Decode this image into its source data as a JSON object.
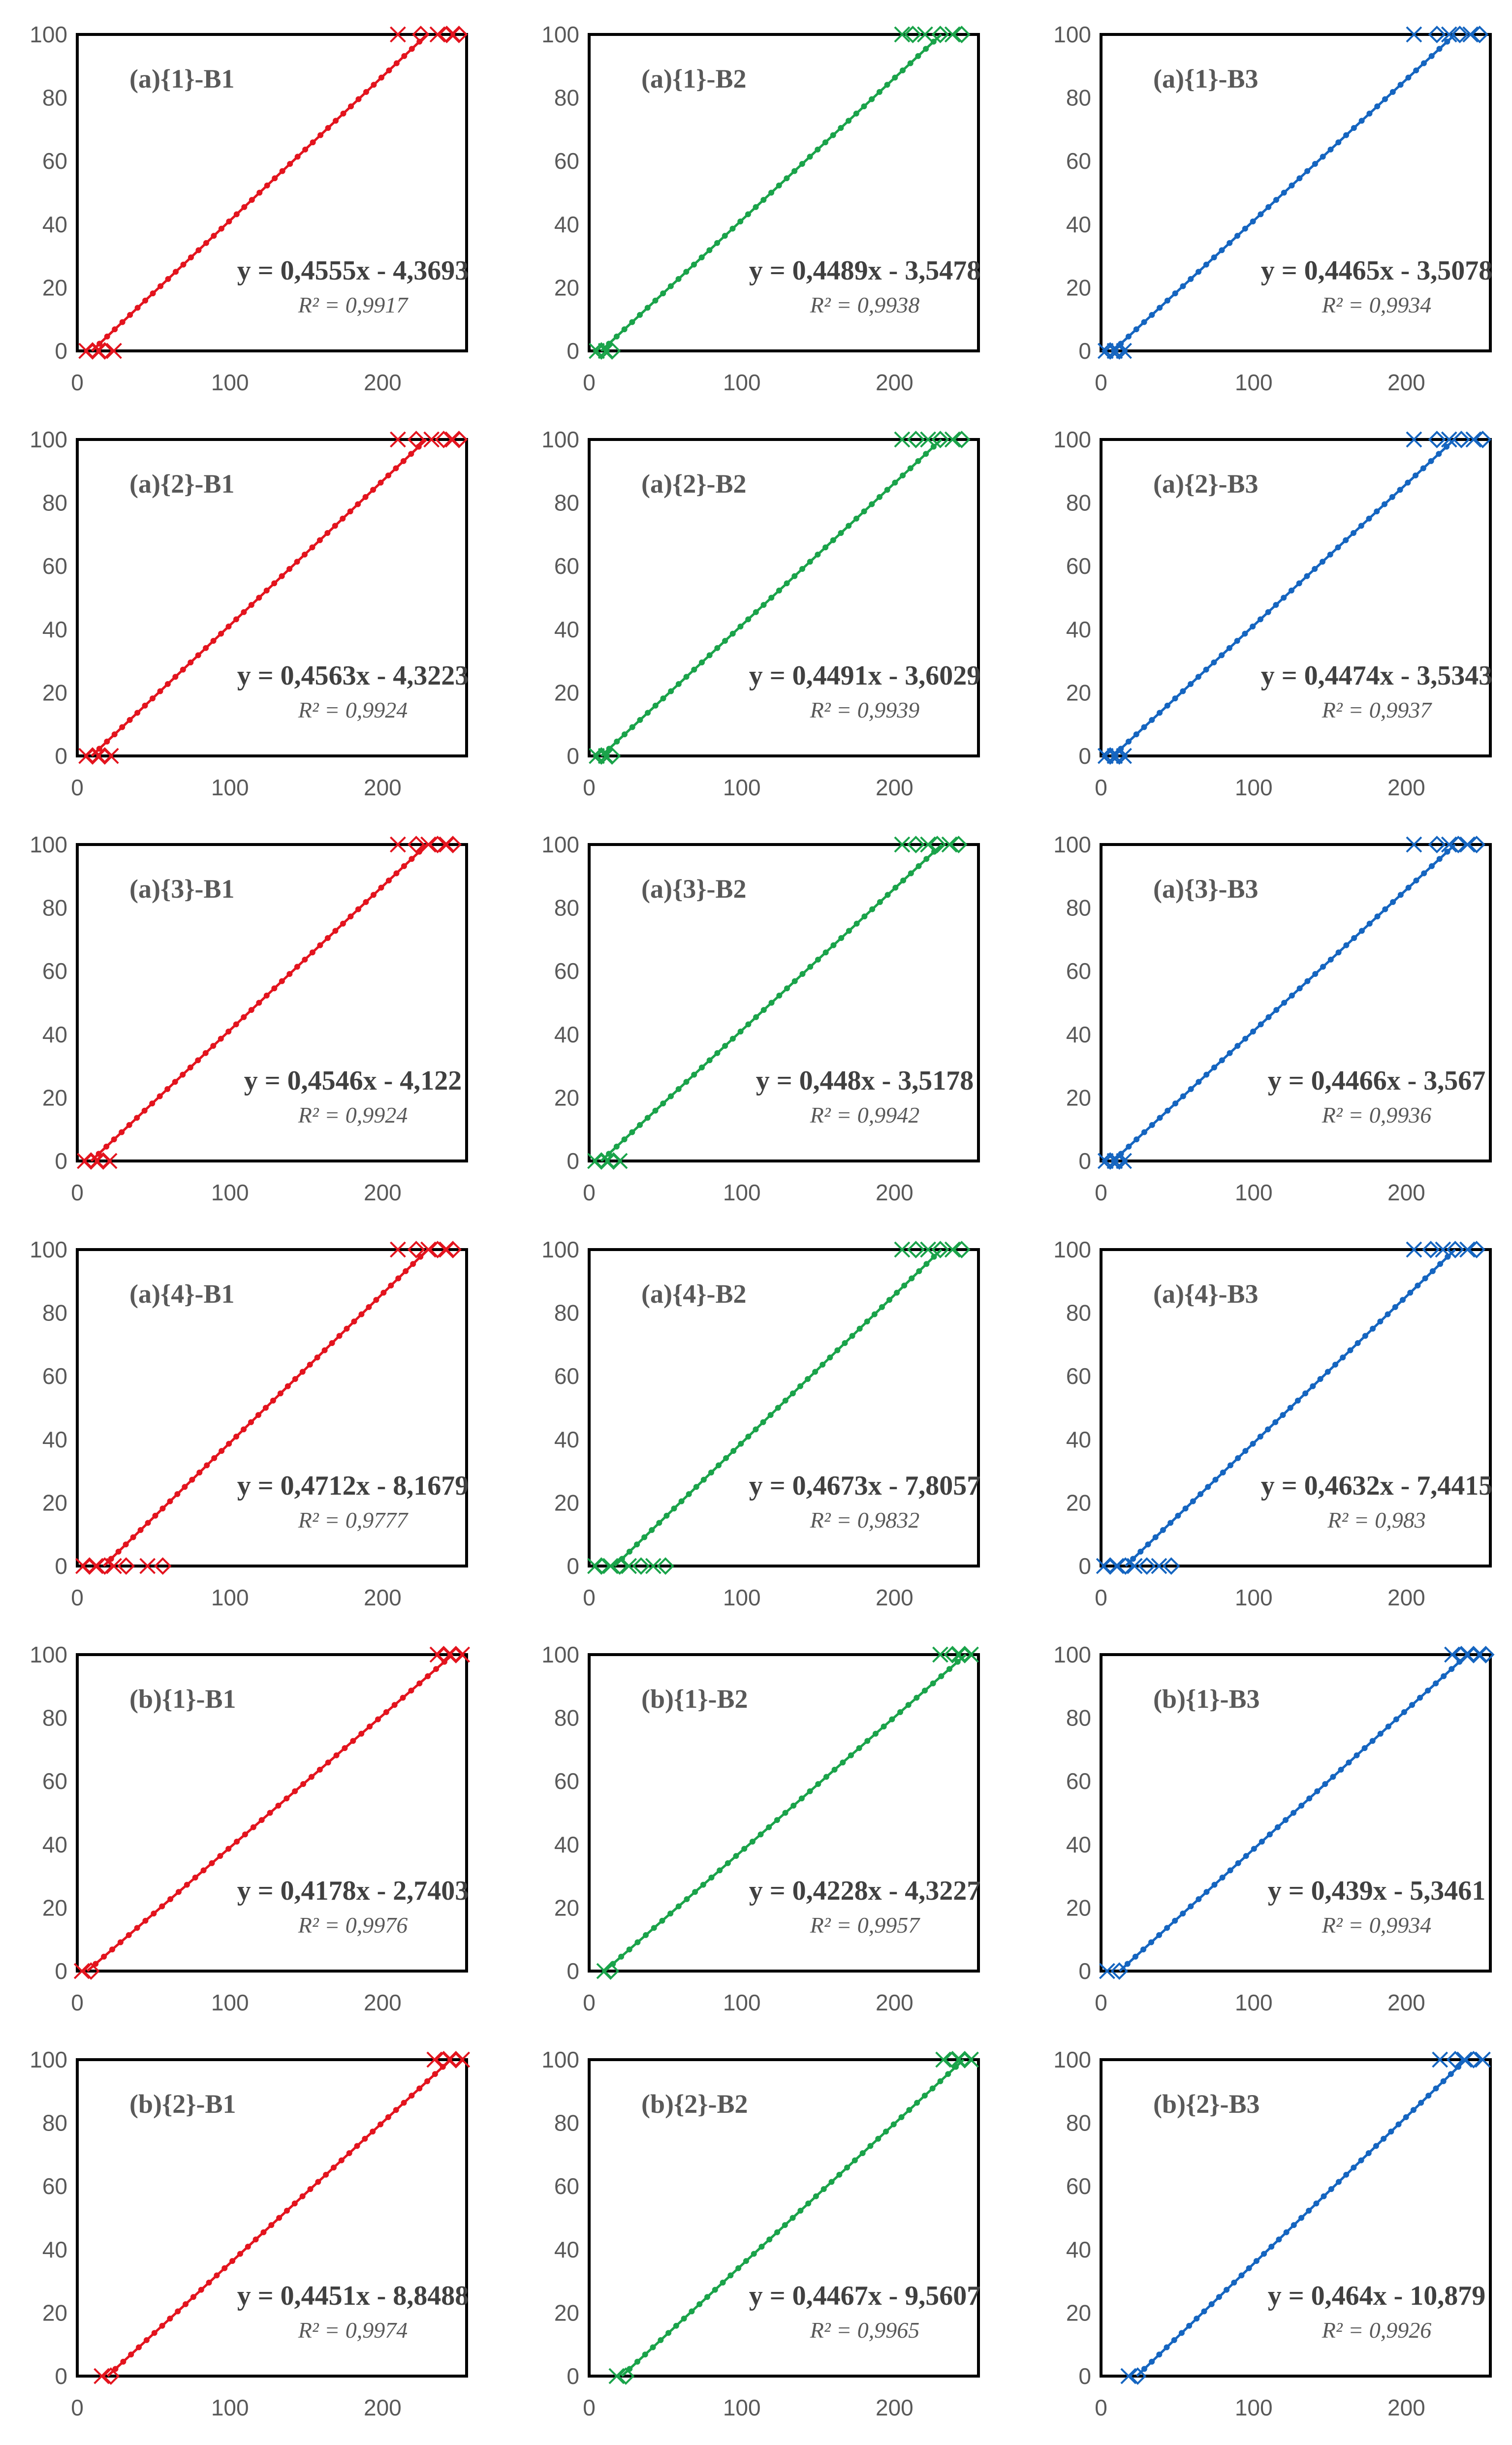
{
  "axes": {
    "x_ticks": [
      "0",
      "100",
      "200"
    ],
    "y_ticks": [
      "0",
      "20",
      "40",
      "60",
      "80",
      "100"
    ],
    "xlim": [
      0,
      255
    ],
    "ylim": [
      0,
      100
    ],
    "grid": false
  },
  "colors": {
    "B1": "#e3141e",
    "B2": "#1aa34a",
    "B3": "#1565c0",
    "frame": "#000000"
  },
  "chart_data": [
    {
      "type": "scatter",
      "title": "(a){1}-B1",
      "equation": "y = 0,4555x - 4,3693",
      "r2": "R² = 0,9917",
      "slope": 0.4555,
      "intercept": -4.3693,
      "color": "#e3141e",
      "low_x": [
        6,
        10,
        14,
        18,
        24
      ],
      "high_x": [
        210,
        225,
        236,
        242,
        246,
        250
      ]
    },
    {
      "type": "scatter",
      "title": "(a){1}-B2",
      "equation": "y = 0,4489x - 3,5478",
      "r2": "R² = 0,9938",
      "slope": 0.4489,
      "intercept": -3.5478,
      "color": "#1aa34a",
      "low_x": [
        5,
        8,
        11,
        15
      ],
      "high_x": [
        205,
        212,
        220,
        230,
        238,
        244
      ],
      "y_offset": 0.1
    },
    {
      "type": "scatter",
      "title": "(a){1}-B3",
      "equation": "y = 0,4465x - 3,5078",
      "r2": "R² = 0,9934",
      "slope": 0.4465,
      "intercept": -3.5078,
      "color": "#1565c0",
      "low_x": [
        3,
        6,
        9,
        12,
        15
      ],
      "high_x": [
        205,
        220,
        228,
        235,
        242,
        248
      ]
    },
    {
      "type": "scatter",
      "title": "(a){2}-B1",
      "equation": "y = 0,4563x - 4,3223",
      "r2": "R² = 0,9924",
      "slope": 0.4563,
      "intercept": -4.3223,
      "color": "#e3141e",
      "low_x": [
        6,
        10,
        14,
        18,
        22
      ],
      "high_x": [
        210,
        222,
        232,
        240,
        246,
        250
      ]
    },
    {
      "type": "scatter",
      "title": "(a){2}-B2",
      "equation": "y = 0,4491x - 3,6029",
      "r2": "R² = 0,9939",
      "slope": 0.4491,
      "intercept": -3.6029,
      "color": "#1aa34a",
      "low_x": [
        5,
        8,
        11,
        15
      ],
      "high_x": [
        205,
        214,
        222,
        230,
        238,
        244
      ]
    },
    {
      "type": "scatter",
      "title": "(a){2}-B3",
      "equation": "y = 0,4474x - 3,5343",
      "r2": "R² = 0,9937",
      "slope": 0.4474,
      "intercept": -3.5343,
      "color": "#1565c0",
      "low_x": [
        3,
        6,
        9,
        12,
        15
      ],
      "high_x": [
        205,
        220,
        228,
        236,
        244,
        250
      ]
    },
    {
      "type": "scatter",
      "title": "(a){3}-B1",
      "equation": "y = 0,4546x - 4,122",
      "r2": "R² = 0,9924",
      "slope": 0.4546,
      "intercept": -4.122,
      "color": "#e3141e",
      "low_x": [
        5,
        9,
        13,
        17,
        21
      ],
      "high_x": [
        210,
        222,
        230,
        236,
        242,
        246
      ]
    },
    {
      "type": "scatter",
      "title": "(a){3}-B2",
      "equation": "y = 0,448x - 3,5178",
      "r2": "R² = 0,9942",
      "slope": 0.448,
      "intercept": -3.5178,
      "color": "#1aa34a",
      "low_x": [
        4,
        8,
        12,
        16,
        20
      ],
      "high_x": [
        205,
        214,
        222,
        228,
        236,
        242
      ]
    },
    {
      "type": "scatter",
      "title": "(a){3}-B3",
      "equation": "y = 0,4466x - 3,567",
      "r2": "R² = 0,9936",
      "slope": 0.4466,
      "intercept": -3.567,
      "color": "#1565c0",
      "low_x": [
        3,
        6,
        9,
        12,
        15
      ],
      "high_x": [
        205,
        220,
        228,
        234,
        240,
        246
      ]
    },
    {
      "type": "scatter",
      "title": "(a){4}-B1",
      "equation": "y = 0,4712x - 8,1679",
      "r2": "R² = 0,9777",
      "slope": 0.4712,
      "intercept": -8.1679,
      "color": "#e3141e",
      "low_x": [
        4,
        8,
        12,
        18,
        24,
        32,
        46,
        56
      ],
      "high_x": [
        210,
        222,
        230,
        236,
        242,
        246
      ]
    },
    {
      "type": "scatter",
      "title": "(a){4}-B2",
      "equation": "y = 0,4673x - 7,8057",
      "r2": "R² = 0,9832",
      "slope": 0.4673,
      "intercept": -7.8057,
      "color": "#1aa34a",
      "low_x": [
        4,
        8,
        14,
        20,
        26,
        34,
        42,
        50
      ],
      "high_x": [
        205,
        214,
        222,
        230,
        238,
        244
      ]
    },
    {
      "type": "scatter",
      "title": "(a){4}-B3",
      "equation": "y = 0,4632x - 7,4415",
      "r2": "R² = 0,983",
      "slope": 0.4632,
      "intercept": -7.4415,
      "color": "#1565c0",
      "low_x": [
        2,
        6,
        10,
        16,
        22,
        30,
        38,
        46
      ],
      "high_x": [
        205,
        216,
        224,
        232,
        240,
        246
      ]
    },
    {
      "type": "scatter",
      "title": "(b){1}-B1",
      "equation": "y = 0,4178x - 2,7403",
      "r2": "R² = 0,9976",
      "slope": 0.4178,
      "intercept": -2.7403,
      "color": "#e3141e",
      "low_x": [
        3,
        9
      ],
      "high_x": [
        236,
        240,
        244,
        248,
        252
      ]
    },
    {
      "type": "scatter",
      "title": "(b){1}-B2",
      "equation": "y = 0,4228x - 4,3227",
      "r2": "R² = 0,9957",
      "slope": 0.4228,
      "intercept": -4.3227,
      "color": "#1aa34a",
      "low_x": [
        10,
        14
      ],
      "high_x": [
        230,
        238,
        242,
        246,
        250
      ]
    },
    {
      "type": "scatter",
      "title": "(b){1}-B3",
      "equation": "y = 0,439x - 5,3461",
      "r2": "R² = 0,9934",
      "slope": 0.439,
      "intercept": -5.3461,
      "color": "#1565c0",
      "low_x": [
        4,
        12
      ],
      "high_x": [
        230,
        236,
        240,
        244,
        248,
        252
      ]
    },
    {
      "type": "scatter",
      "title": "(b){2}-B1",
      "equation": "y = 0,4451x - 8,8488",
      "r2": "R² = 0,9974",
      "slope": 0.4451,
      "intercept": -8.8488,
      "color": "#e3141e",
      "low_x": [
        16,
        22
      ],
      "high_x": [
        234,
        240,
        244,
        248,
        252
      ]
    },
    {
      "type": "scatter",
      "title": "(b){2}-B2",
      "equation": "y = 0,4467x - 9,5607",
      "r2": "R² = 0,9965",
      "slope": 0.4467,
      "intercept": -9.5607,
      "color": "#1aa34a",
      "low_x": [
        18,
        24
      ],
      "high_x": [
        232,
        238,
        242,
        246,
        250
      ]
    },
    {
      "type": "scatter",
      "title": "(b){2}-B3",
      "equation": "y = 0,464x - 10,879",
      "r2": "R² = 0,9926",
      "slope": 0.464,
      "intercept": -10.879,
      "color": "#1565c0",
      "low_x": [
        18,
        24
      ],
      "high_x": [
        222,
        232,
        238,
        244,
        250
      ]
    }
  ]
}
